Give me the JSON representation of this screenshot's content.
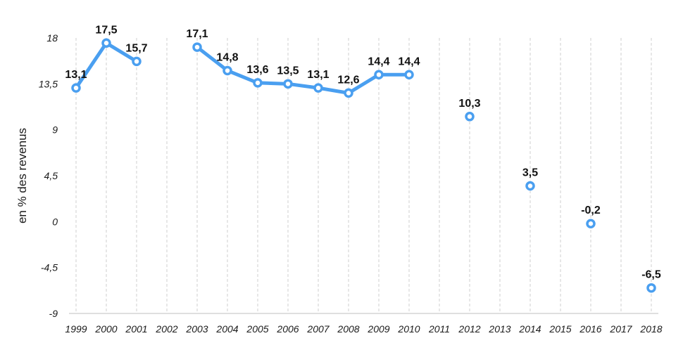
{
  "chart_data": {
    "type": "line",
    "ylabel": "en % des revenus",
    "xlabel": "",
    "title": "",
    "categories": [
      "1999",
      "2000",
      "2001",
      "2002",
      "2003",
      "2004",
      "2005",
      "2006",
      "2007",
      "2008",
      "2009",
      "2010",
      "2011",
      "2012",
      "2013",
      "2014",
      "2015",
      "2016",
      "2017",
      "2018"
    ],
    "ylim": [
      -9,
      18
    ],
    "yticks": [
      "18",
      "13,5",
      "9",
      "4,5",
      "0",
      "-4,5",
      "-9"
    ],
    "ytick_values": [
      18,
      13.5,
      9,
      4.5,
      0,
      -4.5,
      -9
    ],
    "series": [
      {
        "values": [
          13.1,
          17.5,
          15.7,
          null,
          17.1,
          14.8,
          13.6,
          13.5,
          13.1,
          12.6,
          14.4,
          14.4,
          null,
          10.3,
          null,
          3.5,
          null,
          -0.2,
          null,
          -6.5
        ],
        "labels": [
          "13,1",
          "17,5",
          "15,7",
          null,
          "17,1",
          "14,8",
          "13,6",
          "13,5",
          "13,1",
          "12,6",
          "14,4",
          "14,4",
          null,
          "10,3",
          null,
          "3,5",
          null,
          "-0,2",
          null,
          "-6,5"
        ],
        "color": "#4a9ff0"
      }
    ],
    "grid": "vertical dashed",
    "legend": "none"
  }
}
